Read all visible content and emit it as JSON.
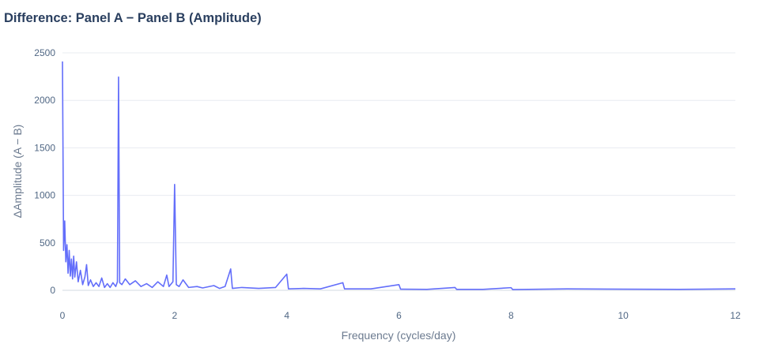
{
  "chart_data": {
    "type": "line",
    "title": "Difference: Panel A − Panel B (Amplitude)",
    "xlabel": "Frequency (cycles/day)",
    "ylabel": "ΔAmplitude (A − B)",
    "xlim": [
      0,
      12
    ],
    "ylim": [
      0,
      2500
    ],
    "x_ticks": [
      0,
      2,
      4,
      6,
      8,
      10,
      12
    ],
    "y_ticks": [
      0,
      500,
      1000,
      1500,
      2000,
      2500
    ],
    "grid": true,
    "legend": "none",
    "line_color": "#636efa",
    "series": [
      {
        "points": [
          [
            0,
            2410
          ],
          [
            0.02,
            420
          ],
          [
            0.04,
            730
          ],
          [
            0.06,
            300
          ],
          [
            0.08,
            480
          ],
          [
            0.1,
            180
          ],
          [
            0.12,
            420
          ],
          [
            0.14,
            150
          ],
          [
            0.16,
            330
          ],
          [
            0.18,
            120
          ],
          [
            0.2,
            360
          ],
          [
            0.22,
            140
          ],
          [
            0.25,
            300
          ],
          [
            0.28,
            90
          ],
          [
            0.32,
            210
          ],
          [
            0.36,
            60
          ],
          [
            0.4,
            140
          ],
          [
            0.43,
            270
          ],
          [
            0.46,
            50
          ],
          [
            0.5,
            110
          ],
          [
            0.55,
            40
          ],
          [
            0.6,
            80
          ],
          [
            0.65,
            40
          ],
          [
            0.7,
            130
          ],
          [
            0.75,
            30
          ],
          [
            0.8,
            70
          ],
          [
            0.85,
            30
          ],
          [
            0.9,
            80
          ],
          [
            0.95,
            40
          ],
          [
            0.98,
            90
          ],
          [
            1.0,
            2245
          ],
          [
            1.02,
            80
          ],
          [
            1.06,
            60
          ],
          [
            1.12,
            120
          ],
          [
            1.2,
            60
          ],
          [
            1.3,
            100
          ],
          [
            1.4,
            40
          ],
          [
            1.5,
            70
          ],
          [
            1.6,
            30
          ],
          [
            1.7,
            90
          ],
          [
            1.8,
            40
          ],
          [
            1.86,
            160
          ],
          [
            1.9,
            40
          ],
          [
            1.97,
            90
          ],
          [
            2.0,
            1115
          ],
          [
            2.03,
            60
          ],
          [
            2.08,
            40
          ],
          [
            2.15,
            110
          ],
          [
            2.25,
            30
          ],
          [
            2.4,
            40
          ],
          [
            2.5,
            25
          ],
          [
            2.7,
            50
          ],
          [
            2.8,
            20
          ],
          [
            2.9,
            40
          ],
          [
            3.0,
            225
          ],
          [
            3.03,
            20
          ],
          [
            3.2,
            30
          ],
          [
            3.5,
            20
          ],
          [
            3.8,
            30
          ],
          [
            4.0,
            170
          ],
          [
            4.03,
            15
          ],
          [
            4.3,
            20
          ],
          [
            4.6,
            15
          ],
          [
            5.0,
            80
          ],
          [
            5.03,
            15
          ],
          [
            5.5,
            15
          ],
          [
            6.0,
            60
          ],
          [
            6.03,
            12
          ],
          [
            6.5,
            10
          ],
          [
            7.0,
            30
          ],
          [
            7.03,
            10
          ],
          [
            7.5,
            10
          ],
          [
            8.0,
            28
          ],
          [
            8.03,
            8
          ],
          [
            9.0,
            15
          ],
          [
            10.0,
            12
          ],
          [
            11.0,
            10
          ],
          [
            12.0,
            15
          ]
        ]
      }
    ]
  }
}
